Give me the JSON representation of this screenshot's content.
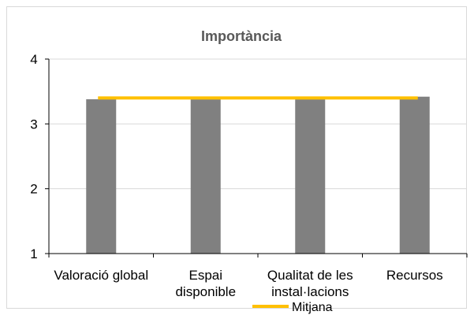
{
  "chart_data": {
    "type": "bar",
    "title": "Importància",
    "categories": [
      [
        "Valoració global"
      ],
      [
        "Espai",
        "disponible"
      ],
      [
        "Qualitat de les",
        "instal·lacions"
      ],
      [
        "Recursos"
      ]
    ],
    "series": [
      {
        "type": "bar",
        "values": [
          3.38,
          3.38,
          3.38,
          3.42
        ],
        "color": "#808080"
      },
      {
        "type": "line",
        "name": "Mitjana",
        "values": [
          3.4,
          3.4,
          3.4,
          3.4
        ],
        "color": "#FFC000"
      }
    ],
    "ylim": [
      1,
      4
    ],
    "yticks": [
      1,
      2,
      3,
      4
    ],
    "grid": true,
    "legend": "bottom"
  }
}
